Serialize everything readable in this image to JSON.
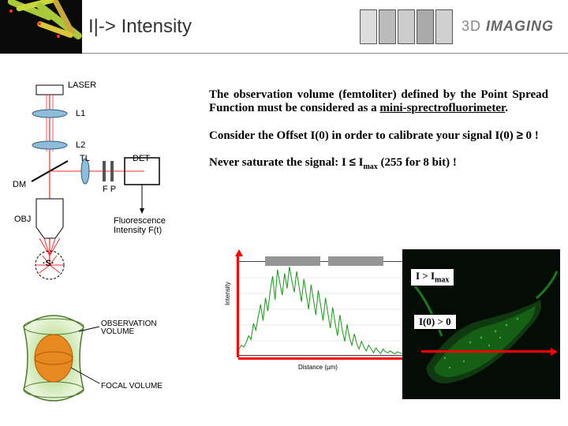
{
  "header": {
    "title": "I|-> Intensity",
    "logo_prefix": "3D ",
    "logo_main": "IMAGING"
  },
  "diagram_labels": {
    "laser": "LASER",
    "l1": "L1",
    "l2": "L2",
    "tl": "TL",
    "det": "DET",
    "dm": "DM",
    "fp": "F P",
    "obj": "OBJ",
    "s": "·S·",
    "fluor_label": "Fluorescence Intensity F(t)",
    "obs_vol": "OBSERVATION VOLUME",
    "focal_vol": "FOCAL VOLUME"
  },
  "paragraphs": {
    "p1_pre": " The observation volume (femtoliter) defined by the Point Spread Function must be considered as a ",
    "p1_underlined": "mini-sprectrofluorimeter",
    "p1_post": ".",
    "p2_pre": "  Consider the Offset I(0) in order to calibrate your signal I(0) ",
    "p2_sym": "≥",
    "p2_post": " 0 !",
    "p3_pre": "Never saturate the signal: I ",
    "p3_sym": "≤",
    "p3_mid": " I",
    "p3_sub": "max",
    "p3_post": " (255 for 8 bit) !"
  },
  "badges": {
    "b1_pre": "I > I",
    "b1_sub": "max",
    "b2": "I(0) > 0"
  },
  "chart": {
    "x_axis_label": "Distance (µm)",
    "y_axis_label": "Intensity",
    "data_color": "#139a13",
    "grid_color": "#d0d0d0",
    "arrow_color": "#ff0000",
    "x_range": [
      0,
      30
    ],
    "y_range": [
      0,
      180
    ],
    "line_heights_pct": [
      8,
      12,
      10,
      15,
      22,
      18,
      35,
      28,
      42,
      55,
      38,
      62,
      48,
      70,
      85,
      60,
      92,
      78,
      65,
      88,
      72,
      95,
      80,
      68,
      90,
      74,
      58,
      82,
      66,
      50,
      76,
      60,
      44,
      70,
      54,
      38,
      62,
      46,
      30,
      52,
      36,
      22,
      44,
      28,
      16,
      34,
      20,
      12,
      24,
      14,
      8,
      16,
      10,
      6,
      12,
      8,
      4,
      9,
      6,
      3,
      8,
      5,
      4,
      6,
      4,
      3,
      5,
      4,
      3,
      4
    ]
  },
  "cell_image": {
    "bg": "#050b05",
    "cell_color": "#1a7a1a",
    "speckle_color": "#3db83d"
  },
  "colors": {
    "ray_color": "#ff2a2a",
    "lens_fill": "#8fbcd9",
    "lens_stroke": "#2a5a7a",
    "obs_outer_start": "#9fd070",
    "obs_outer_end": "#e8f4d8",
    "focal_fill": "#e88820"
  }
}
